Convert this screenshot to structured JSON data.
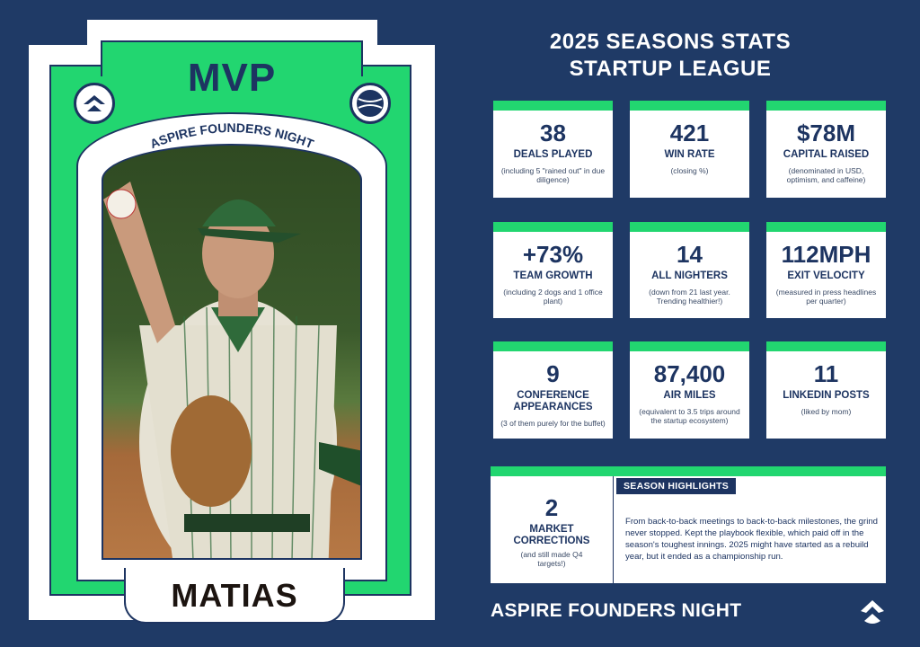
{
  "card": {
    "top_label": "MVP",
    "arch_label": "ASPIRE FOUNDERS NIGHT",
    "player_name": "MATIAS",
    "left_badge_icon": "aspire-logo-icon",
    "right_badge_icon": "baseball-icon"
  },
  "header": {
    "line1": "2025 SEASONS STATS",
    "line2": "STARTUP LEAGUE"
  },
  "stats": [
    {
      "value": "38",
      "label": "DEALS PLAYED",
      "note": "(including 5 \"rained out\" in due diligence)"
    },
    {
      "value": "421",
      "label": "WIN RATE",
      "note": "(closing %)"
    },
    {
      "value": "$78M",
      "label": "CAPITAL RAISED",
      "note": "(denominated in USD, optimism, and caffeine)"
    },
    {
      "value": "+73%",
      "label": "TEAM GROWTH",
      "note": "(including 2 dogs and 1 office plant)"
    },
    {
      "value": "14",
      "label": "ALL NIGHTERS",
      "note": "(down from 21 last year. Trending healthier!)"
    },
    {
      "value": "112MPH",
      "label": "EXIT VELOCITY",
      "note": "(measured in press headlines per quarter)"
    },
    {
      "value": "9",
      "label": "CONFERENCE APPEARANCES",
      "note": "(3 of them purely for the buffet)"
    },
    {
      "value": "87,400",
      "label": "AIR MILES",
      "note": "(equivalent to 3.5 trips around the startup ecosystem)"
    },
    {
      "value": "11",
      "label": "LINKEDIN POSTS",
      "note": "(liked by mom)"
    }
  ],
  "highlight_stat": {
    "value": "2",
    "label": "MARKET CORRECTIONS",
    "note": "(and still made Q4 targets!)"
  },
  "season_highlights": {
    "title": "SEASON HIGHLIGHTS",
    "text": "From back-to-back meetings to back-to-back milestones, the grind never stopped. Kept the playbook flexible, which paid off in the season's toughest innings. 2025 might have started as a rebuild year, but it ended as a championship run."
  },
  "footer": {
    "label": "ASPIRE FOUNDERS NIGHT",
    "logo_icon": "aspire-logo-icon"
  },
  "colors": {
    "navy": "#1f3a66",
    "green": "#22d670",
    "ink": "#1d3461"
  }
}
